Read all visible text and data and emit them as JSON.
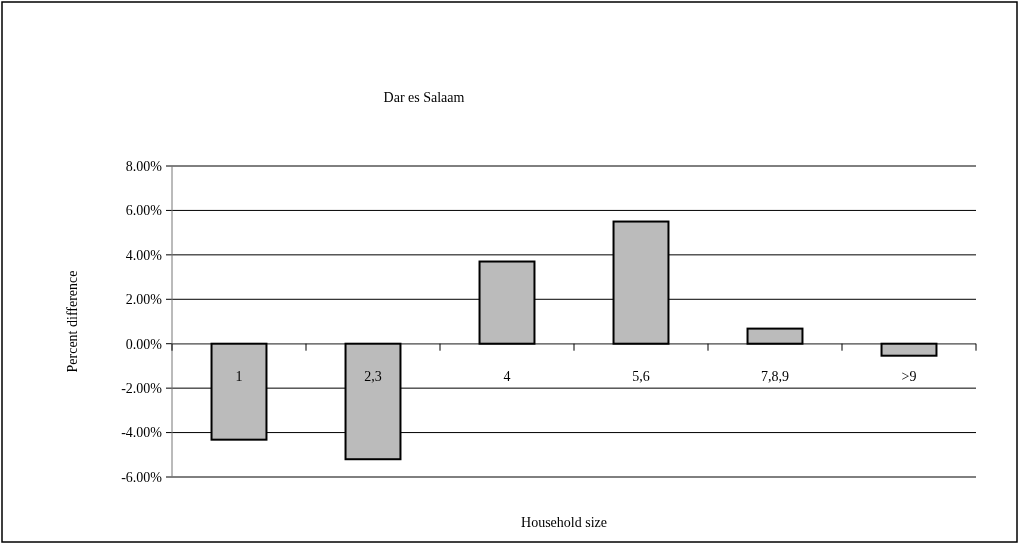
{
  "chart_data": {
    "type": "bar",
    "title": "Dar es Salaam",
    "xlabel": "Household size",
    "ylabel": "Percent difference",
    "categories": [
      "1",
      "2,3",
      "4",
      "5,6",
      "7,8,9",
      ">9"
    ],
    "values": [
      -4.32,
      -5.2,
      3.7,
      5.5,
      0.68,
      -0.54
    ],
    "color": "#bbbbbb",
    "ylim": [
      -6,
      8
    ],
    "yticks": [
      {
        "value": -6,
        "label": "-6.00%"
      },
      {
        "value": -4,
        "label": "-4.00%"
      },
      {
        "value": -2,
        "label": "-2.00%"
      },
      {
        "value": 0,
        "label": "0.00%"
      },
      {
        "value": 2,
        "label": "2.00%"
      },
      {
        "value": 4,
        "label": "4.00%"
      },
      {
        "value": 6,
        "label": "6.00%"
      },
      {
        "value": 8,
        "label": "8.00%"
      }
    ],
    "grid": "y"
  }
}
